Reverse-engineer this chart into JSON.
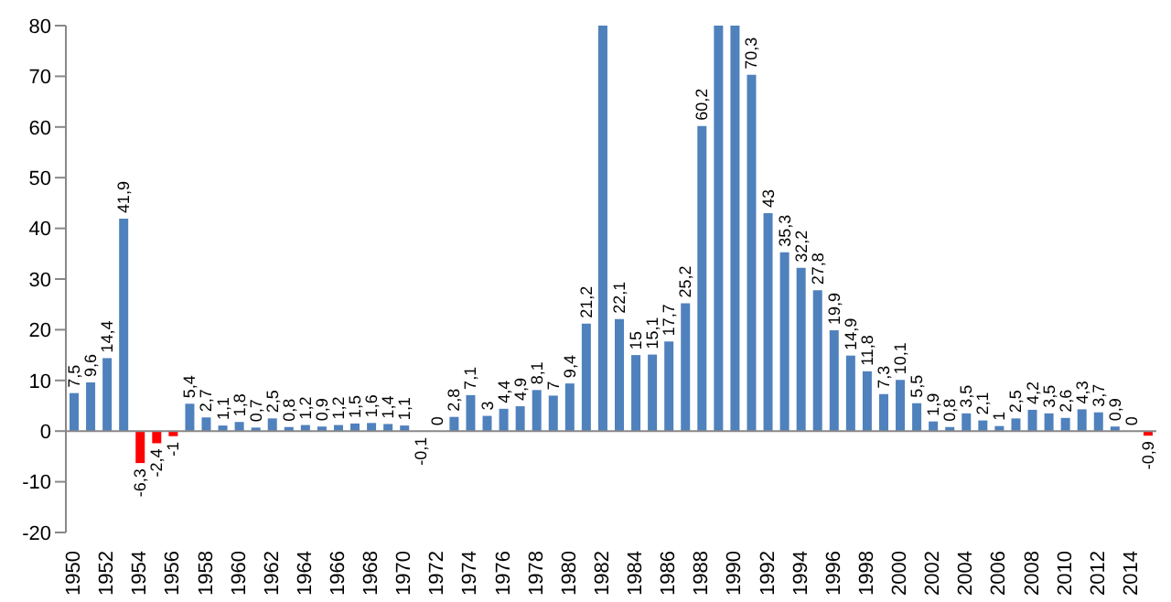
{
  "chart_data": {
    "type": "bar",
    "categories": [
      "1950",
      null,
      "1952",
      null,
      "1954",
      null,
      "1956",
      null,
      "1958",
      null,
      "1960",
      null,
      "1962",
      null,
      "1964",
      null,
      "1966",
      null,
      "1968",
      null,
      "1970",
      null,
      "1972",
      null,
      "1974",
      null,
      "1976",
      null,
      "1978",
      null,
      "1980",
      null,
      "1982",
      null,
      "1984",
      null,
      "1986",
      null,
      "1988",
      null,
      "1990",
      null,
      "1992",
      null,
      "1994",
      null,
      "1996",
      null,
      "1998",
      null,
      "2000",
      null,
      "2002",
      null,
      "2004",
      null,
      "2006",
      null,
      "2008",
      null,
      "2010",
      null,
      "2012",
      null,
      "2014",
      null
    ],
    "values": [
      7.5,
      9.6,
      14.4,
      41.9,
      -6.3,
      -2.4,
      -1,
      5.4,
      2.7,
      1.1,
      1.8,
      0.7,
      2.5,
      0.8,
      1.2,
      0.9,
      1.2,
      1.5,
      1.6,
      1.4,
      1.1,
      -0.1,
      0,
      2.8,
      7.1,
      3,
      4.4,
      4.9,
      8.1,
      7,
      9.4,
      21.2,
      80,
      22.1,
      15,
      15.1,
      17.7,
      25.2,
      60.2,
      80,
      80,
      70.3,
      43,
      35.3,
      32.2,
      27.8,
      19.9,
      14.9,
      11.8,
      7.3,
      10.1,
      5.5,
      1.9,
      0.8,
      3.5,
      2.1,
      1,
      2.5,
      4.2,
      3.5,
      2.6,
      4.3,
      3.7,
      0.9,
      0,
      -0.9
    ],
    "value_labels": [
      "7,5",
      "9,6",
      "14,4",
      "41,9",
      "-6,3",
      "-2,4",
      "-1",
      "5,4",
      "2,7",
      "1,1",
      "1,8",
      "0,7",
      "2,5",
      "0,8",
      "1,2",
      "0,9",
      "1,2",
      "1,5",
      "1,6",
      "1,4",
      "1,1",
      "-0,1",
      "0",
      "2,8",
      "7,1",
      "3",
      "4,4",
      "4,9",
      "8,1",
      "7",
      "9,4",
      "21,2",
      null,
      "22,1",
      "15",
      "15,1",
      "17,7",
      "25,2",
      "60,2",
      null,
      null,
      "70,3",
      "43",
      "35,3",
      "32,2",
      "27,8",
      "19,9",
      "14,9",
      "11,8",
      "7,3",
      "10,1",
      "5,5",
      "1,9",
      "0,8",
      "3,5",
      "2,1",
      "1",
      "2,5",
      "4,2",
      "3,5",
      "2,6",
      "4,3",
      "3,7",
      "0,9",
      "0",
      "-0,9"
    ],
    "colors": [
      "#4f81bd",
      "#4f81bd",
      "#4f81bd",
      "#4f81bd",
      "#ff0000",
      "#ff0000",
      "#ff0000",
      "#4f81bd",
      "#4f81bd",
      "#4f81bd",
      "#4f81bd",
      "#4f81bd",
      "#4f81bd",
      "#4f81bd",
      "#4f81bd",
      "#4f81bd",
      "#4f81bd",
      "#4f81bd",
      "#4f81bd",
      "#4f81bd",
      "#4f81bd",
      "#4f81bd",
      "#4f81bd",
      "#4f81bd",
      "#4f81bd",
      "#4f81bd",
      "#4f81bd",
      "#4f81bd",
      "#4f81bd",
      "#4f81bd",
      "#4f81bd",
      "#4f81bd",
      "#4f81bd",
      "#4f81bd",
      "#4f81bd",
      "#4f81bd",
      "#4f81bd",
      "#4f81bd",
      "#4f81bd",
      "#4f81bd",
      "#4f81bd",
      "#4f81bd",
      "#4f81bd",
      "#4f81bd",
      "#4f81bd",
      "#4f81bd",
      "#4f81bd",
      "#4f81bd",
      "#4f81bd",
      "#4f81bd",
      "#4f81bd",
      "#4f81bd",
      "#4f81bd",
      "#4f81bd",
      "#4f81bd",
      "#4f81bd",
      "#4f81bd",
      "#4f81bd",
      "#4f81bd",
      "#4f81bd",
      "#4f81bd",
      "#4f81bd",
      "#4f81bd",
      "#4f81bd",
      "#4f81bd",
      "#ff0000"
    ],
    "ylim": [
      -20,
      80
    ],
    "yticks": [
      -20,
      -10,
      0,
      10,
      20,
      30,
      40,
      50,
      60,
      70,
      80
    ],
    "legend": false
  }
}
